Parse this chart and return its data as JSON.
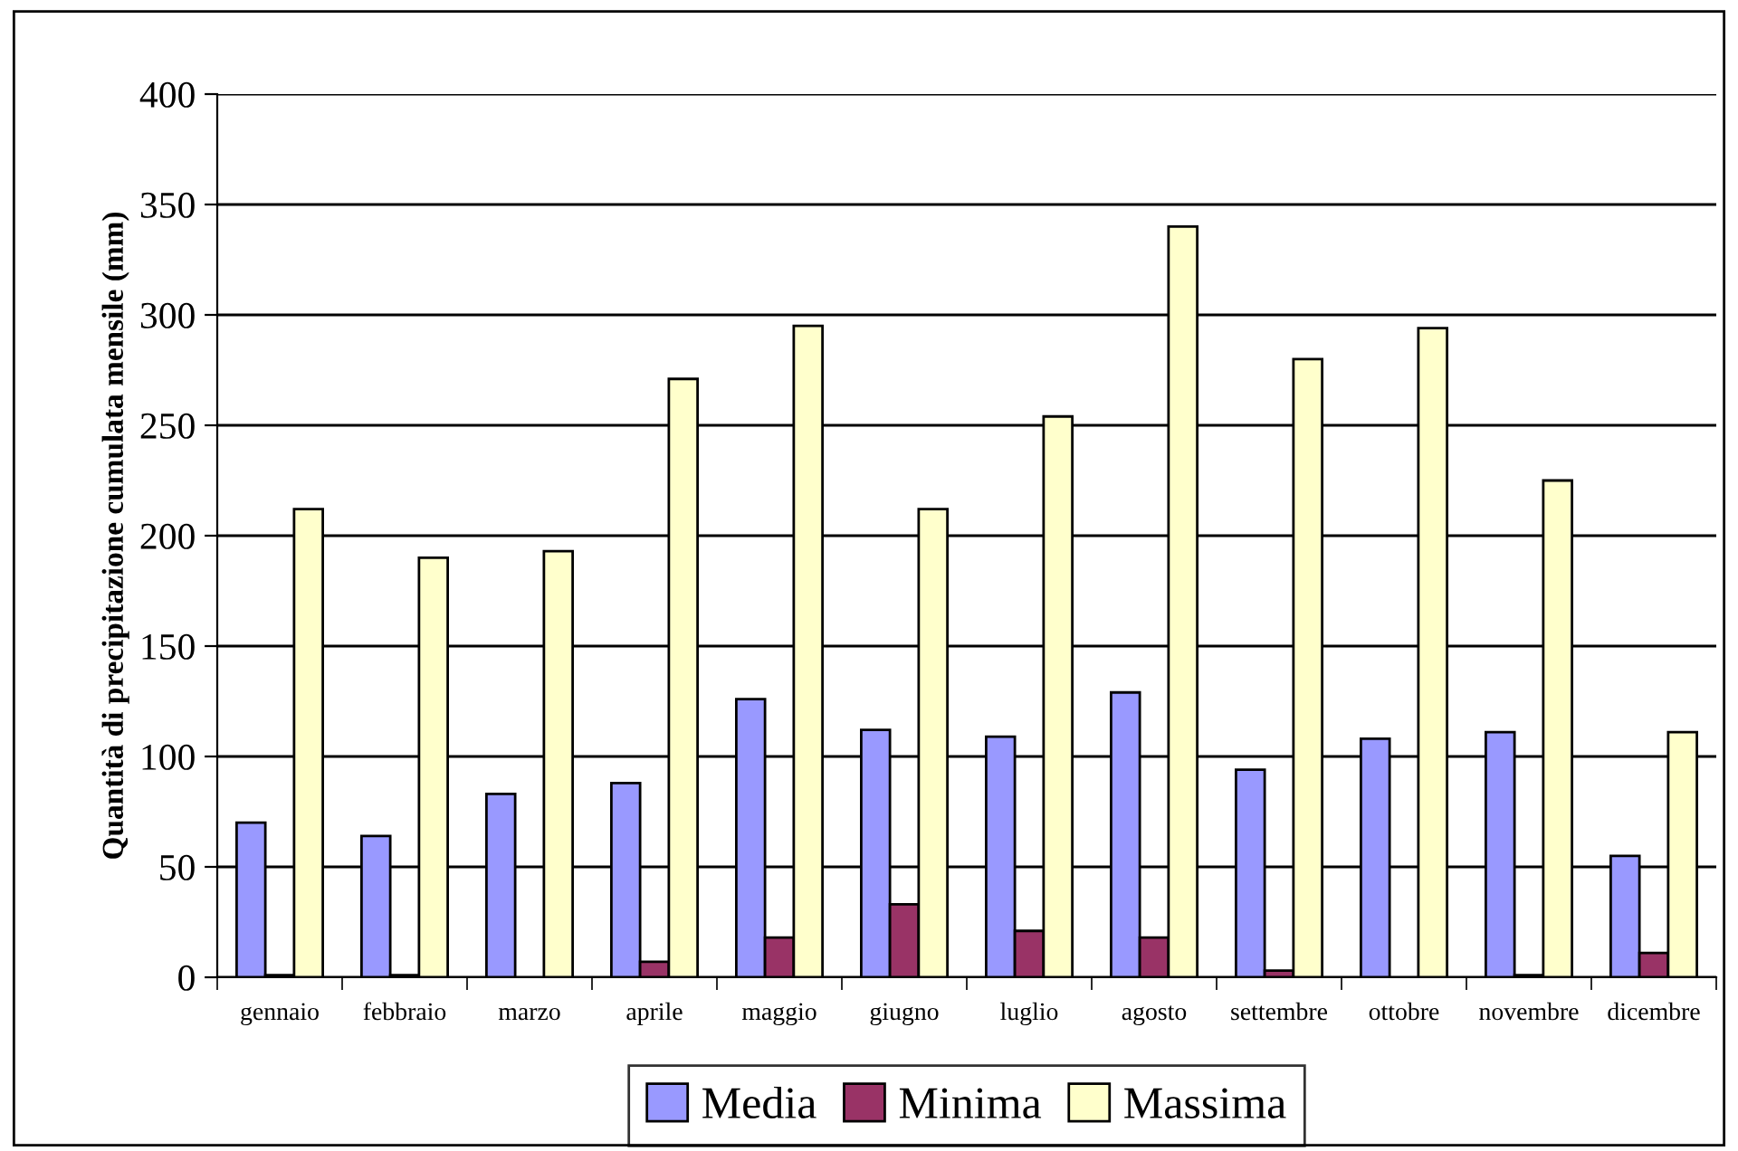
{
  "chart_data": {
    "type": "bar",
    "ylabel": "Quantità di precipitazione cumulata mensile (mm)",
    "categories": [
      "gennaio",
      "febbraio",
      "marzo",
      "aprile",
      "maggio",
      "giugno",
      "luglio",
      "agosto",
      "settembre",
      "ottobre",
      "novembre",
      "dicembre"
    ],
    "series": [
      {
        "name": "Media",
        "color": "#9999ff",
        "values": [
          70,
          64,
          83,
          88,
          126,
          112,
          109,
          129,
          94,
          108,
          111,
          55
        ]
      },
      {
        "name": "Minima",
        "color": "#993366",
        "values": [
          1,
          1,
          0,
          7,
          18,
          33,
          21,
          18,
          3,
          0,
          1,
          11
        ]
      },
      {
        "name": "Massima",
        "color": "#ffffcc",
        "values": [
          212,
          190,
          193,
          271,
          295,
          212,
          254,
          340,
          280,
          294,
          225,
          111
        ]
      }
    ],
    "ylim": [
      0,
      400
    ],
    "yticks": [
      0,
      50,
      100,
      150,
      200,
      250,
      300,
      350,
      400
    ],
    "grid": "y",
    "legend": "bottom"
  }
}
